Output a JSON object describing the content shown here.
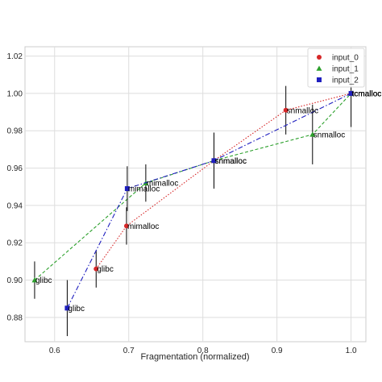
{
  "chart_data": {
    "type": "scatter",
    "title": "",
    "xlabel": "Fragmentation (normalized)",
    "ylabel": "",
    "xlim": [
      0.56,
      1.02
    ],
    "ylim": [
      0.867,
      1.025
    ],
    "xticks": [
      0.6,
      0.7,
      0.8,
      0.9,
      1.0
    ],
    "xtick_labels": [
      "0.6",
      "0.7",
      "0.8",
      "0.9",
      "1.0"
    ],
    "yticks": [
      0.88,
      0.9,
      0.92,
      0.94,
      0.96,
      0.98,
      1.0,
      1.02
    ],
    "ytick_labels": [
      "0.88",
      "0.90",
      "0.92",
      "0.94",
      "0.96",
      "0.98",
      "1.00",
      "1.02"
    ],
    "grid": true,
    "legend_position": "top-right",
    "series": [
      {
        "name": "input_0",
        "color": "#d62728",
        "marker": "circle",
        "line": "dotted",
        "points": [
          {
            "x": 0.656,
            "y": 0.906,
            "yerr": 0.01,
            "label": "glibc"
          },
          {
            "x": 0.697,
            "y": 0.929,
            "yerr": 0.01,
            "label": "mimalloc"
          },
          {
            "x": 0.815,
            "y": 0.964,
            "yerr": 0.015,
            "label": "snmalloc"
          },
          {
            "x": 0.912,
            "y": 0.991,
            "yerr": 0.013,
            "label": "snmalloc"
          },
          {
            "x": 1.0,
            "y": 1.0,
            "yerr": 0.0,
            "label": "tcmalloc"
          }
        ]
      },
      {
        "name": "input_1",
        "color": "#2ca02c",
        "marker": "triangle",
        "line": "dashed",
        "points": [
          {
            "x": 0.573,
            "y": 0.9,
            "yerr": 0.01,
            "label": "glibc"
          },
          {
            "x": 0.723,
            "y": 0.952,
            "yerr": 0.01,
            "label": "mimalloc"
          },
          {
            "x": 0.815,
            "y": 0.964,
            "yerr": 0.015,
            "label": ""
          },
          {
            "x": 0.948,
            "y": 0.978,
            "yerr": 0.016,
            "label": "snmalloc"
          },
          {
            "x": 1.0,
            "y": 1.0,
            "yerr": 0.0,
            "label": "tcmalloc"
          }
        ]
      },
      {
        "name": "input_2",
        "color": "#1f1fbf",
        "marker": "square",
        "line": "dashdot",
        "points": [
          {
            "x": 0.617,
            "y": 0.885,
            "yerr": 0.015,
            "label": "glibc"
          },
          {
            "x": 0.698,
            "y": 0.949,
            "yerr": 0.012,
            "label": "mimalloc"
          },
          {
            "x": 0.815,
            "y": 0.964,
            "yerr": 0.006,
            "label": "snmalloc"
          },
          {
            "x": 1.0,
            "y": 1.0,
            "yerr": 0.018,
            "label": "tcmalloc"
          }
        ]
      }
    ]
  }
}
